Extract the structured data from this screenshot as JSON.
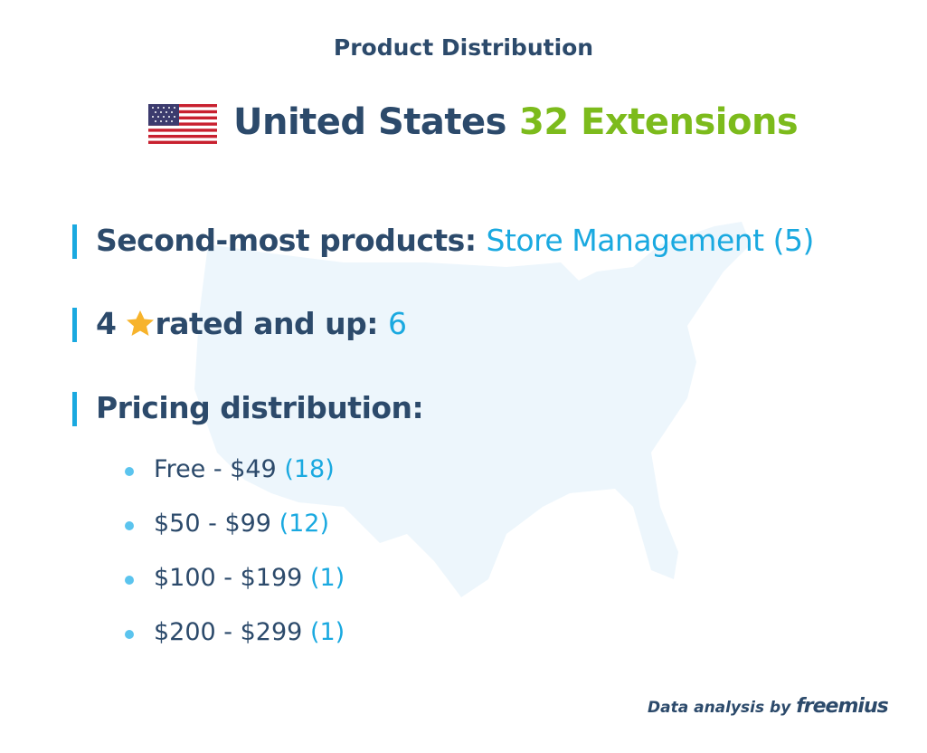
{
  "header": {
    "title": "Product Distribution"
  },
  "country": {
    "name": "United States",
    "count": "32 Extensions"
  },
  "facts": [
    {
      "label": "Second-most products:",
      "value": "Store Management (5)"
    },
    {
      "prefix": "4",
      "label": "rated and up:",
      "value": "6"
    },
    {
      "label": "Pricing distribution:"
    }
  ],
  "pricing": [
    {
      "range": "Free - $49",
      "count": "(18)"
    },
    {
      "range": "$50 - $99",
      "count": "(12)"
    },
    {
      "range": "$100 - $199",
      "count": "(1)"
    },
    {
      "range": "$200 - $299",
      "count": "(1)"
    }
  ],
  "footer": {
    "text": "Data analysis by",
    "brand": "freemius"
  }
}
